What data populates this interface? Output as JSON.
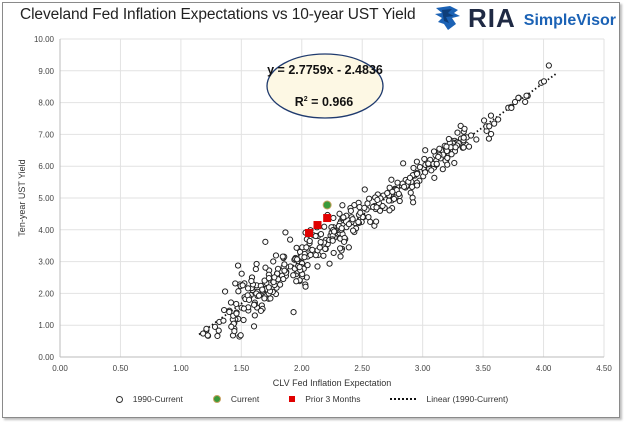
{
  "header": {
    "title": "Cleveland Fed Inflation Expectations vs 10-year UST Yield",
    "logo_main": "RIA",
    "logo_sub": "SimpleVisor"
  },
  "colors": {
    "current": "#3a9a3a",
    "prior": "#e00000",
    "marker_outline": "#333333",
    "ellipse_fill": "#fdf8e4",
    "ellipse_stroke": "#1f3a6e",
    "grid": "#e2e2e2",
    "logo_blue": "#1b62b5"
  },
  "annotation": {
    "equation": "y = 2.7759x - 2.4836",
    "r2_label": "R",
    "r2_sup": "2",
    "r2_value": " = 0.966"
  },
  "legend": {
    "items": [
      {
        "label": "1990-Current"
      },
      {
        "label": "Current"
      },
      {
        "label": "Prior 3 Months"
      },
      {
        "label": "Linear (1990-Current)"
      }
    ]
  },
  "chart_data": {
    "type": "scatter",
    "title": "Cleveland Fed Inflation Expectations vs 10-year UST Yield",
    "xlabel": "CLV Fed Inflation Expectation",
    "ylabel": "Ten-year UST Yield",
    "xlim": [
      0,
      4.5
    ],
    "ylim": [
      0,
      10
    ],
    "xticks": [
      "0.00",
      "0.50",
      "1.00",
      "1.50",
      "2.00",
      "2.50",
      "3.00",
      "3.50",
      "4.00",
      "4.50"
    ],
    "yticks": [
      "0.00",
      "1.00",
      "2.00",
      "3.00",
      "4.00",
      "5.00",
      "6.00",
      "7.00",
      "8.00",
      "9.00",
      "10.00"
    ],
    "grid": true,
    "legend_position": "bottom",
    "trendline": {
      "name": "Linear (1990-Current)",
      "slope": 2.7759,
      "intercept": -2.4836,
      "r2": 0.966,
      "x_range": [
        1.15,
        4.1
      ]
    },
    "series": [
      {
        "name": "1990-Current",
        "marker": "open-circle",
        "generated": {
          "count": 420,
          "x_range": [
            1.15,
            4.12
          ],
          "noise_sd": 0.35,
          "seed": 7
        }
      },
      {
        "name": "Current",
        "marker": "filled-circle",
        "points": [
          [
            2.21,
            4.78
          ]
        ]
      },
      {
        "name": "Prior 3 Months",
        "marker": "square",
        "points": [
          [
            2.06,
            3.9
          ],
          [
            2.13,
            4.15
          ],
          [
            2.21,
            4.37
          ]
        ]
      }
    ]
  }
}
